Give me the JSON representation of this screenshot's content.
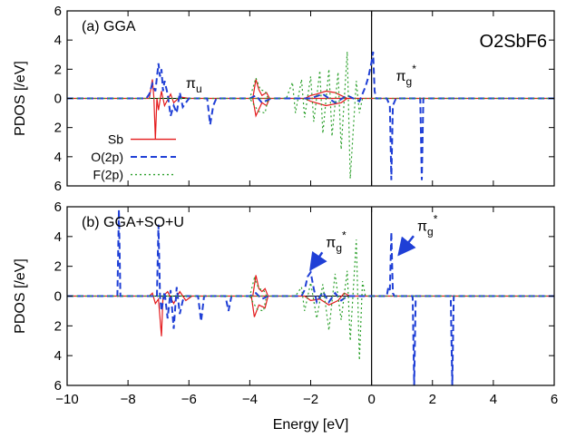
{
  "chart_data": [
    {
      "type": "line",
      "panel_label": "(a) GGA",
      "formula": "O2SbF6",
      "ylabel": "PDOS [/eV]",
      "xlim": [
        -10,
        6
      ],
      "ylim": [
        -6,
        6
      ],
      "x_ticks": [
        -10,
        -8,
        -6,
        -4,
        -2,
        0,
        2,
        4,
        6
      ],
      "y_tick_values": [
        6,
        4,
        2,
        0,
        -2,
        -4,
        -6
      ],
      "y_tick_labels": [
        "6",
        "4",
        "2",
        "0",
        "2",
        "4",
        "6"
      ],
      "annotations": [
        {
          "base": "π",
          "sub": "u",
          "sup": "",
          "x": -6.1,
          "y": 0.7
        },
        {
          "base": "π",
          "sub": "g",
          "sup": "*",
          "x": 0.8,
          "y": 1.2
        }
      ],
      "legend": [
        {
          "label": "Sb",
          "color": "#e41a1c",
          "style": "solid"
        },
        {
          "label": "O(2p)",
          "color": "#1f3fd6",
          "style": "dashed"
        },
        {
          "label": "F(2p)",
          "color": "#2ca02c",
          "style": "dotted"
        }
      ],
      "series": [
        {
          "name": "Sb",
          "color": "#e41a1c",
          "style": "solid",
          "points": [
            [
              -10,
              0
            ],
            [
              -7.3,
              0
            ],
            [
              -7.2,
              1.3
            ],
            [
              -7.15,
              0
            ],
            [
              -7.1,
              -2.8
            ],
            [
              -7.05,
              0
            ],
            [
              -7.0,
              -0.8
            ],
            [
              -6.9,
              0.5
            ],
            [
              -6.8,
              -0.5
            ],
            [
              -6.6,
              0.3
            ],
            [
              -6.5,
              -0.3
            ],
            [
              -6.3,
              0.1
            ],
            [
              -6.0,
              0
            ],
            [
              -3.9,
              0
            ],
            [
              -3.8,
              1.3
            ],
            [
              -3.7,
              0.6
            ],
            [
              -3.6,
              0.2
            ],
            [
              -3.45,
              0.4
            ],
            [
              -3.35,
              0
            ],
            [
              -3.45,
              -0.5
            ],
            [
              -3.6,
              -0.3
            ],
            [
              -3.8,
              -1.2
            ],
            [
              -3.9,
              0
            ],
            [
              -2.2,
              0
            ],
            [
              -2.0,
              0.2
            ],
            [
              -1.8,
              0.3
            ],
            [
              -1.5,
              0.5
            ],
            [
              -1.2,
              0.4
            ],
            [
              -1.0,
              0.2
            ],
            [
              -0.8,
              0
            ],
            [
              -1.0,
              -0.3
            ],
            [
              -1.5,
              -0.5
            ],
            [
              -2.0,
              -0.2
            ],
            [
              -2.2,
              0
            ],
            [
              0,
              0
            ],
            [
              6,
              0
            ]
          ]
        },
        {
          "name": "O(2p)",
          "color": "#1f3fd6",
          "style": "dashed",
          "points": [
            [
              -10,
              0
            ],
            [
              -7.4,
              0
            ],
            [
              -7.3,
              0.3
            ],
            [
              -7.2,
              1.0
            ],
            [
              -7.1,
              0.5
            ],
            [
              -7.0,
              2.4
            ],
            [
              -6.95,
              1.5
            ],
            [
              -6.9,
              2.0
            ],
            [
              -6.85,
              0.5
            ],
            [
              -6.8,
              1.2
            ],
            [
              -6.7,
              0.3
            ],
            [
              -6.6,
              -1.2
            ],
            [
              -6.5,
              -0.5
            ],
            [
              -6.4,
              -1.0
            ],
            [
              -6.3,
              0.4
            ],
            [
              -6.2,
              -0.6
            ],
            [
              -6.0,
              0
            ],
            [
              -5.4,
              0
            ],
            [
              -5.3,
              -1.8
            ],
            [
              -5.2,
              -0.5
            ],
            [
              -5.1,
              0
            ],
            [
              -4.0,
              0
            ],
            [
              -3.8,
              0.2
            ],
            [
              -3.6,
              -0.3
            ],
            [
              -3.3,
              0
            ],
            [
              -2.0,
              0
            ],
            [
              -1.6,
              0.3
            ],
            [
              -1.2,
              -0.3
            ],
            [
              -0.8,
              0.2
            ],
            [
              -0.4,
              -0.2
            ],
            [
              -0.2,
              0.8
            ],
            [
              -0.1,
              1.5
            ],
            [
              0,
              2.5
            ],
            [
              0.05,
              3.2
            ],
            [
              0.1,
              0.5
            ],
            [
              0.15,
              0
            ],
            [
              0.5,
              0
            ],
            [
              0.6,
              -0.5
            ],
            [
              0.65,
              -5.6
            ],
            [
              0.7,
              -0.5
            ],
            [
              0.8,
              0
            ],
            [
              1.6,
              0
            ],
            [
              1.65,
              -5.6
            ],
            [
              1.7,
              0
            ],
            [
              6,
              0
            ]
          ]
        },
        {
          "name": "F(2p)",
          "color": "#2ca02c",
          "style": "dotted",
          "points": [
            [
              -10,
              0
            ],
            [
              -4.0,
              0
            ],
            [
              -3.8,
              1.4
            ],
            [
              -3.65,
              0.6
            ],
            [
              -3.5,
              0.5
            ],
            [
              -3.4,
              0
            ],
            [
              -3.5,
              -1.0
            ],
            [
              -3.7,
              -0.9
            ],
            [
              -3.85,
              -0.5
            ],
            [
              -4.0,
              0
            ],
            [
              -2.8,
              0
            ],
            [
              -2.6,
              1.1
            ],
            [
              -2.5,
              -1.0
            ],
            [
              -2.3,
              1.3
            ],
            [
              -2.2,
              -1.3
            ],
            [
              -2.0,
              1.5
            ],
            [
              -1.9,
              -1.6
            ],
            [
              -1.7,
              1.9
            ],
            [
              -1.6,
              -2.4
            ],
            [
              -1.4,
              2.0
            ],
            [
              -1.3,
              -2.6
            ],
            [
              -1.1,
              1.8
            ],
            [
              -1.0,
              -3.5
            ],
            [
              -0.8,
              3.2
            ],
            [
              -0.7,
              -5.5
            ],
            [
              -0.5,
              1.2
            ],
            [
              -0.4,
              -1.0
            ],
            [
              -0.3,
              0
            ],
            [
              6,
              0
            ]
          ]
        }
      ]
    },
    {
      "type": "line",
      "panel_label": "(b) GGA+SO+U",
      "ylabel": "PDOS [/eV]",
      "xlabel": "Energy [eV]",
      "xlim": [
        -10,
        6
      ],
      "ylim": [
        -6,
        6
      ],
      "x_ticks": [
        -10,
        -8,
        -6,
        -4,
        -2,
        0,
        2,
        4,
        6
      ],
      "y_tick_values": [
        6,
        4,
        2,
        0,
        -2,
        -4,
        -6
      ],
      "y_tick_labels": [
        "6",
        "4",
        "2",
        "0",
        "2",
        "4",
        "6"
      ],
      "annotations": [
        {
          "base": "π",
          "sub": "g",
          "sup": "*",
          "x": -1.5,
          "y": 3.3,
          "arrow_to": [
            -2.0,
            1.8
          ]
        },
        {
          "base": "π",
          "sub": "g",
          "sup": "*",
          "x": 1.5,
          "y": 4.4,
          "arrow_to": [
            0.9,
            2.8
          ]
        }
      ],
      "series": [
        {
          "name": "Sb",
          "color": "#e41a1c",
          "style": "solid",
          "points": [
            [
              -10,
              0
            ],
            [
              -7.3,
              0
            ],
            [
              -7.2,
              0.2
            ],
            [
              -7.1,
              -0.5
            ],
            [
              -7.0,
              -0.2
            ],
            [
              -6.9,
              -2.7
            ],
            [
              -6.85,
              0
            ],
            [
              -6.7,
              0.3
            ],
            [
              -6.5,
              -0.5
            ],
            [
              -6.3,
              0.3
            ],
            [
              -6.1,
              -0.3
            ],
            [
              -5.9,
              0
            ],
            [
              -3.9,
              0
            ],
            [
              -3.8,
              1.4
            ],
            [
              -3.7,
              0.5
            ],
            [
              -3.6,
              0.3
            ],
            [
              -3.5,
              0.5
            ],
            [
              -3.4,
              0
            ],
            [
              -3.5,
              -0.8
            ],
            [
              -3.7,
              -0.6
            ],
            [
              -3.85,
              -1.4
            ],
            [
              -3.95,
              0
            ],
            [
              -2.2,
              0
            ],
            [
              -2.0,
              -0.3
            ],
            [
              -1.7,
              -0.2
            ],
            [
              -1.4,
              -0.6
            ],
            [
              -1.1,
              -0.3
            ],
            [
              -0.9,
              0.2
            ],
            [
              -0.7,
              0
            ],
            [
              6,
              0
            ]
          ]
        },
        {
          "name": "O(2p)",
          "color": "#1f3fd6",
          "style": "dashed",
          "points": [
            [
              -10,
              0
            ],
            [
              -8.35,
              0
            ],
            [
              -8.3,
              5.8
            ],
            [
              -8.25,
              0
            ],
            [
              -7.05,
              0
            ],
            [
              -7.0,
              4.8
            ],
            [
              -6.95,
              0
            ],
            [
              -6.9,
              -1.0
            ],
            [
              -6.8,
              0.3
            ],
            [
              -6.7,
              -1.5
            ],
            [
              -6.6,
              0.4
            ],
            [
              -6.5,
              -2.2
            ],
            [
              -6.4,
              0.6
            ],
            [
              -6.3,
              -1.2
            ],
            [
              -6.2,
              -0.3
            ],
            [
              -6.1,
              0
            ],
            [
              -5.7,
              0
            ],
            [
              -5.6,
              -1.7
            ],
            [
              -5.5,
              0
            ],
            [
              -4.8,
              0
            ],
            [
              -4.7,
              -1.0
            ],
            [
              -4.6,
              0
            ],
            [
              -4.0,
              0
            ],
            [
              -3.8,
              0.2
            ],
            [
              -3.6,
              -0.2
            ],
            [
              -3.4,
              0
            ],
            [
              -2.3,
              0
            ],
            [
              -2.2,
              0.4
            ],
            [
              -2.1,
              1.3
            ],
            [
              -2.0,
              1.6
            ],
            [
              -1.9,
              0.5
            ],
            [
              -1.8,
              -0.4
            ],
            [
              -1.6,
              0.3
            ],
            [
              -1.4,
              -0.4
            ],
            [
              -1.2,
              0.2
            ],
            [
              -1.0,
              -0.3
            ],
            [
              -0.8,
              0
            ],
            [
              0.5,
              0
            ],
            [
              0.55,
              0.6
            ],
            [
              0.6,
              0.4
            ],
            [
              0.65,
              4.3
            ],
            [
              0.7,
              0.2
            ],
            [
              0.75,
              0
            ],
            [
              1.35,
              0
            ],
            [
              1.4,
              -6
            ],
            [
              1.45,
              0
            ],
            [
              2.6,
              0
            ],
            [
              2.65,
              -6
            ],
            [
              2.7,
              0
            ],
            [
              6,
              0
            ]
          ]
        },
        {
          "name": "F(2p)",
          "color": "#2ca02c",
          "style": "dotted",
          "points": [
            [
              -10,
              0
            ],
            [
              -4.0,
              0
            ],
            [
              -3.85,
              1.2
            ],
            [
              -3.7,
              0.5
            ],
            [
              -3.55,
              0.4
            ],
            [
              -3.45,
              0
            ],
            [
              -3.55,
              -1.0
            ],
            [
              -3.75,
              -0.9
            ],
            [
              -3.9,
              -0.4
            ],
            [
              -4.0,
              0
            ],
            [
              -2.5,
              0
            ],
            [
              -2.3,
              0.6
            ],
            [
              -2.2,
              -1.0
            ],
            [
              -2.0,
              0.9
            ],
            [
              -1.8,
              -1.5
            ],
            [
              -1.6,
              0.8
            ],
            [
              -1.4,
              -2.3
            ],
            [
              -1.2,
              1.5
            ],
            [
              -1.0,
              -1.6
            ],
            [
              -0.8,
              1.7
            ],
            [
              -0.7,
              -3.0
            ],
            [
              -0.5,
              3.8
            ],
            [
              -0.4,
              -4.3
            ],
            [
              -0.3,
              1.0
            ],
            [
              -0.2,
              0
            ],
            [
              6,
              0
            ]
          ]
        }
      ]
    }
  ]
}
